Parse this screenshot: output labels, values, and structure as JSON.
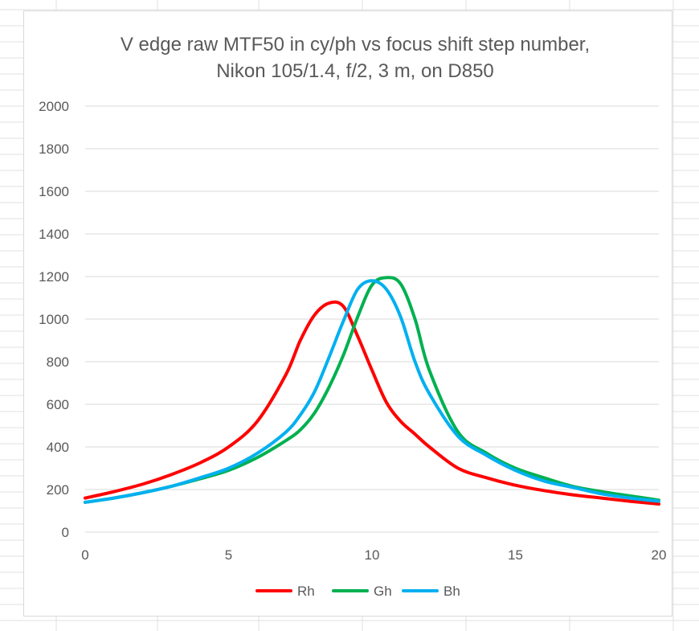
{
  "chart_data": {
    "type": "line",
    "title_lines": [
      "V edge raw MTF50 in cy/ph vs focus shift step number,",
      "Nikon 105/1.4, f/2, 3 m, on D850"
    ],
    "xlabel": "",
    "ylabel": "",
    "xlim": [
      0,
      20
    ],
    "ylim": [
      0,
      2000
    ],
    "x_ticks": [
      "0",
      "5",
      "10",
      "15",
      "20"
    ],
    "y_ticks": [
      "0",
      "200",
      "400",
      "600",
      "800",
      "1000",
      "1200",
      "1400",
      "1600",
      "1800",
      "2000"
    ],
    "grid": "horizontal",
    "legend_position": "bottom",
    "x": [
      0,
      1,
      2,
      3,
      4,
      5,
      6,
      7,
      7.5,
      8,
      8.5,
      9,
      9.5,
      10,
      10.5,
      11,
      11.5,
      12,
      13,
      14,
      15,
      16,
      17,
      18,
      19,
      20
    ],
    "series": [
      {
        "name": "Rh",
        "color": "#ff0000",
        "values": [
          160,
          190,
          225,
          270,
          325,
          400,
          520,
          740,
          900,
          1020,
          1075,
          1060,
          920,
          760,
          610,
          520,
          460,
          400,
          300,
          255,
          220,
          195,
          175,
          160,
          145,
          132
        ]
      },
      {
        "name": "Gh",
        "color": "#00b050",
        "values": [
          140,
          160,
          185,
          215,
          250,
          290,
          350,
          430,
          480,
          560,
          680,
          830,
          1010,
          1160,
          1195,
          1165,
          1000,
          760,
          470,
          370,
          300,
          255,
          215,
          190,
          170,
          150
        ]
      },
      {
        "name": "Bh",
        "color": "#00b0f0",
        "values": [
          140,
          160,
          185,
          215,
          255,
          300,
          370,
          470,
          550,
          660,
          820,
          990,
          1140,
          1180,
          1140,
          1010,
          800,
          650,
          450,
          360,
          290,
          240,
          210,
          180,
          160,
          145
        ]
      }
    ]
  }
}
